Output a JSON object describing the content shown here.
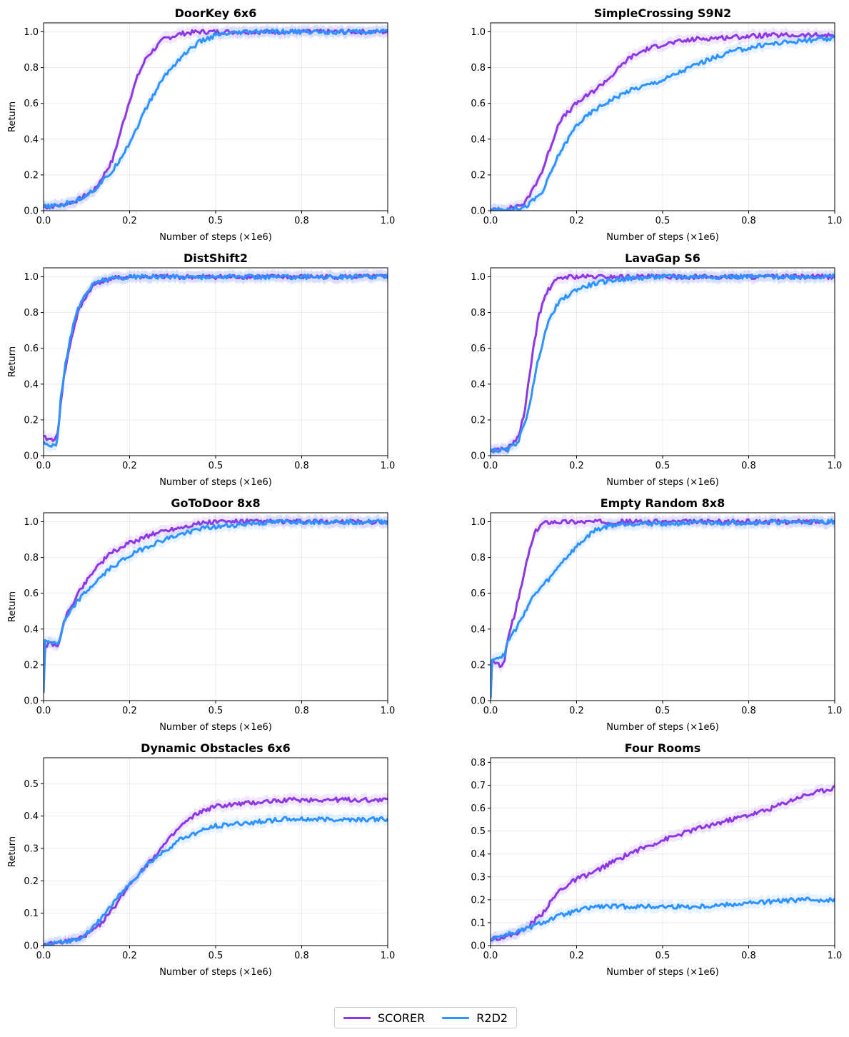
{
  "figure": {
    "legend": [
      {
        "name": "SCORER",
        "color": "#8e38e3"
      },
      {
        "name": "R2D2",
        "color": "#2e93ff"
      }
    ]
  },
  "chart_data": [
    {
      "type": "line",
      "title": "DoorKey 6x6",
      "xlabel": "Number of steps (×1e6)",
      "ylabel": "Return",
      "xlim": [
        0,
        1.0
      ],
      "ylim": [
        0,
        1.05
      ],
      "xticks": [
        0.0,
        0.25,
        0.5,
        0.75,
        1.0
      ],
      "xticklabels": [
        "0.0",
        "0.2",
        "0.5",
        "0.8",
        "1.0"
      ],
      "yticks": [
        0.0,
        0.2,
        0.4,
        0.6,
        0.8,
        1.0
      ],
      "yticklabels": [
        "0.0",
        "0.2",
        "0.4",
        "0.6",
        "0.8",
        "1.0"
      ],
      "grid": true,
      "series": [
        {
          "name": "SCORER",
          "color": "#8e38e3",
          "x": [
            0,
            0.05,
            0.1,
            0.15,
            0.2,
            0.225,
            0.25,
            0.275,
            0.3,
            0.35,
            0.4,
            0.45,
            0.5,
            0.6,
            0.8,
            1.0
          ],
          "y": [
            0.02,
            0.03,
            0.06,
            0.12,
            0.28,
            0.45,
            0.62,
            0.76,
            0.86,
            0.96,
            0.99,
            1.0,
            1.0,
            1.0,
            1.0,
            1.0
          ]
        },
        {
          "name": "R2D2",
          "color": "#2e93ff",
          "x": [
            0,
            0.05,
            0.1,
            0.15,
            0.2,
            0.25,
            0.3,
            0.35,
            0.4,
            0.45,
            0.5,
            0.55,
            0.6,
            0.8,
            1.0
          ],
          "y": [
            0.02,
            0.03,
            0.06,
            0.12,
            0.22,
            0.38,
            0.58,
            0.75,
            0.86,
            0.94,
            0.98,
            0.99,
            1.0,
            1.0,
            1.0
          ]
        }
      ]
    },
    {
      "type": "line",
      "title": "SimpleCrossing S9N2",
      "xlabel": "Number of steps (×1e6)",
      "ylabel": "",
      "xlim": [
        0,
        1.0
      ],
      "ylim": [
        0,
        1.05
      ],
      "xticks": [
        0.0,
        0.25,
        0.5,
        0.75,
        1.0
      ],
      "xticklabels": [
        "0.0",
        "0.2",
        "0.5",
        "0.8",
        "1.0"
      ],
      "yticks": [
        0.0,
        0.2,
        0.4,
        0.6,
        0.8,
        1.0
      ],
      "yticklabels": [
        "0.0",
        "0.2",
        "0.4",
        "0.6",
        "0.8",
        "1.0"
      ],
      "grid": true,
      "series": [
        {
          "name": "SCORER",
          "color": "#8e38e3",
          "x": [
            0,
            0.05,
            0.1,
            0.15,
            0.2,
            0.25,
            0.3,
            0.35,
            0.4,
            0.45,
            0.5,
            0.6,
            0.7,
            0.8,
            0.9,
            1.0
          ],
          "y": [
            0.0,
            0.01,
            0.04,
            0.22,
            0.5,
            0.6,
            0.67,
            0.75,
            0.85,
            0.9,
            0.93,
            0.96,
            0.97,
            0.98,
            0.98,
            0.98
          ]
        },
        {
          "name": "R2D2",
          "color": "#2e93ff",
          "x": [
            0,
            0.05,
            0.1,
            0.15,
            0.2,
            0.25,
            0.3,
            0.35,
            0.4,
            0.5,
            0.6,
            0.7,
            0.8,
            0.9,
            1.0
          ],
          "y": [
            0.0,
            0.01,
            0.02,
            0.1,
            0.32,
            0.48,
            0.56,
            0.62,
            0.67,
            0.73,
            0.82,
            0.89,
            0.93,
            0.95,
            0.96
          ]
        }
      ]
    },
    {
      "type": "line",
      "title": "DistShift2",
      "xlabel": "Number of steps (×1e6)",
      "ylabel": "Return",
      "xlim": [
        0,
        1.0
      ],
      "ylim": [
        0,
        1.05
      ],
      "xticks": [
        0.0,
        0.25,
        0.5,
        0.75,
        1.0
      ],
      "xticklabels": [
        "0.0",
        "0.2",
        "0.5",
        "0.8",
        "1.0"
      ],
      "yticks": [
        0.0,
        0.2,
        0.4,
        0.6,
        0.8,
        1.0
      ],
      "yticklabels": [
        "0.0",
        "0.2",
        "0.4",
        "0.6",
        "0.8",
        "1.0"
      ],
      "grid": true,
      "series": [
        {
          "name": "SCORER",
          "color": "#8e38e3",
          "x": [
            0,
            0.02,
            0.04,
            0.05,
            0.06,
            0.08,
            0.1,
            0.12,
            0.14,
            0.16,
            0.2,
            0.25,
            0.3,
            1.0
          ],
          "y": [
            0.1,
            0.09,
            0.1,
            0.3,
            0.45,
            0.65,
            0.8,
            0.88,
            0.94,
            0.97,
            0.99,
            1.0,
            1.0,
            1.0
          ]
        },
        {
          "name": "R2D2",
          "color": "#2e93ff",
          "x": [
            0,
            0.02,
            0.04,
            0.05,
            0.06,
            0.08,
            0.1,
            0.12,
            0.14,
            0.16,
            0.2,
            0.25,
            0.3,
            1.0
          ],
          "y": [
            0.07,
            0.06,
            0.07,
            0.32,
            0.47,
            0.68,
            0.82,
            0.9,
            0.95,
            0.98,
            0.99,
            1.0,
            1.0,
            1.0
          ]
        }
      ]
    },
    {
      "type": "line",
      "title": "LavaGap S6",
      "xlabel": "Number of steps (×1e6)",
      "ylabel": "",
      "xlim": [
        0,
        1.0
      ],
      "ylim": [
        0,
        1.05
      ],
      "xticks": [
        0.0,
        0.25,
        0.5,
        0.75,
        1.0
      ],
      "xticklabels": [
        "0.0",
        "0.2",
        "0.5",
        "0.8",
        "1.0"
      ],
      "yticks": [
        0.0,
        0.2,
        0.4,
        0.6,
        0.8,
        1.0
      ],
      "yticklabels": [
        "0.0",
        "0.2",
        "0.4",
        "0.6",
        "0.8",
        "1.0"
      ],
      "grid": true,
      "series": [
        {
          "name": "SCORER",
          "color": "#8e38e3",
          "x": [
            0,
            0.05,
            0.08,
            0.1,
            0.12,
            0.14,
            0.16,
            0.18,
            0.2,
            0.22,
            0.25,
            0.3,
            1.0
          ],
          "y": [
            0.03,
            0.04,
            0.1,
            0.25,
            0.55,
            0.78,
            0.9,
            0.96,
            0.99,
            1.0,
            1.0,
            1.0,
            1.0
          ]
        },
        {
          "name": "R2D2",
          "color": "#2e93ff",
          "x": [
            0,
            0.05,
            0.08,
            0.1,
            0.12,
            0.14,
            0.16,
            0.18,
            0.2,
            0.25,
            0.3,
            0.35,
            0.4,
            0.5,
            1.0
          ],
          "y": [
            0.03,
            0.03,
            0.08,
            0.18,
            0.35,
            0.55,
            0.7,
            0.8,
            0.86,
            0.93,
            0.96,
            0.98,
            0.99,
            1.0,
            1.0
          ]
        }
      ]
    },
    {
      "type": "line",
      "title": "GoToDoor 8x8",
      "xlabel": "Number of steps (×1e6)",
      "ylabel": "Return",
      "xlim": [
        0,
        1.0
      ],
      "ylim": [
        0,
        1.05
      ],
      "xticks": [
        0.0,
        0.25,
        0.5,
        0.75,
        1.0
      ],
      "xticklabels": [
        "0.0",
        "0.2",
        "0.5",
        "0.8",
        "1.0"
      ],
      "yticks": [
        0.0,
        0.2,
        0.4,
        0.6,
        0.8,
        1.0
      ],
      "yticklabels": [
        "0.0",
        "0.2",
        "0.4",
        "0.6",
        "0.8",
        "1.0"
      ],
      "grid": true,
      "series": [
        {
          "name": "SCORER",
          "color": "#8e38e3",
          "x": [
            0,
            0.003,
            0.02,
            0.045,
            0.06,
            0.1,
            0.15,
            0.2,
            0.25,
            0.3,
            0.35,
            0.4,
            0.45,
            0.5,
            0.6,
            0.8,
            1.0
          ],
          "y": [
            0.05,
            0.3,
            0.32,
            0.31,
            0.45,
            0.6,
            0.74,
            0.83,
            0.88,
            0.92,
            0.95,
            0.97,
            0.99,
            1.0,
            1.0,
            1.0,
            1.0
          ]
        },
        {
          "name": "R2D2",
          "color": "#2e93ff",
          "x": [
            0,
            0.003,
            0.02,
            0.045,
            0.06,
            0.1,
            0.15,
            0.2,
            0.25,
            0.3,
            0.35,
            0.4,
            0.45,
            0.5,
            0.6,
            0.7,
            0.8,
            1.0
          ],
          "y": [
            0.05,
            0.33,
            0.33,
            0.32,
            0.44,
            0.56,
            0.66,
            0.75,
            0.81,
            0.86,
            0.9,
            0.93,
            0.96,
            0.97,
            0.99,
            1.0,
            1.0,
            1.0
          ]
        }
      ]
    },
    {
      "type": "line",
      "title": "Empty Random 8x8",
      "xlabel": "Number of steps (×1e6)",
      "ylabel": "",
      "xlim": [
        0,
        1.0
      ],
      "ylim": [
        0,
        1.05
      ],
      "xticks": [
        0.0,
        0.25,
        0.5,
        0.75,
        1.0
      ],
      "xticklabels": [
        "0.0",
        "0.2",
        "0.5",
        "0.8",
        "1.0"
      ],
      "yticks": [
        0.0,
        0.2,
        0.4,
        0.6,
        0.8,
        1.0
      ],
      "yticklabels": [
        "0.0",
        "0.2",
        "0.4",
        "0.6",
        "0.8",
        "1.0"
      ],
      "grid": true,
      "series": [
        {
          "name": "SCORER",
          "color": "#8e38e3",
          "x": [
            0,
            0.003,
            0.02,
            0.04,
            0.05,
            0.07,
            0.09,
            0.11,
            0.13,
            0.15,
            0.17,
            0.2,
            1.0
          ],
          "y": [
            0.0,
            0.22,
            0.2,
            0.2,
            0.35,
            0.48,
            0.64,
            0.82,
            0.94,
            0.99,
            1.0,
            1.0,
            1.0
          ]
        },
        {
          "name": "R2D2",
          "color": "#2e93ff",
          "x": [
            0,
            0.003,
            0.02,
            0.04,
            0.05,
            0.08,
            0.1,
            0.12,
            0.15,
            0.18,
            0.2,
            0.25,
            0.3,
            0.35,
            0.4,
            0.5,
            1.0
          ],
          "y": [
            0.0,
            0.24,
            0.24,
            0.25,
            0.33,
            0.42,
            0.5,
            0.57,
            0.64,
            0.7,
            0.76,
            0.86,
            0.95,
            0.98,
            0.99,
            0.99,
            1.0
          ]
        }
      ]
    },
    {
      "type": "line",
      "title": "Dynamic Obstacles 6x6",
      "xlabel": "Number of steps (×1e6)",
      "ylabel": "Return",
      "xlim": [
        0,
        1.0
      ],
      "ylim": [
        0,
        0.58
      ],
      "xticks": [
        0.0,
        0.25,
        0.5,
        0.75,
        1.0
      ],
      "xticklabels": [
        "0.0",
        "0.2",
        "0.5",
        "0.8",
        "1.0"
      ],
      "yticks": [
        0.0,
        0.1,
        0.2,
        0.3,
        0.4,
        0.5
      ],
      "yticklabels": [
        "0.0",
        "0.1",
        "0.2",
        "0.3",
        "0.4",
        "0.5"
      ],
      "grid": true,
      "series": [
        {
          "name": "SCORER",
          "color": "#8e38e3",
          "x": [
            0,
            0.1,
            0.15,
            0.2,
            0.25,
            0.3,
            0.35,
            0.4,
            0.45,
            0.5,
            0.6,
            0.7,
            0.8,
            0.9,
            1.0
          ],
          "y": [
            0.0,
            0.02,
            0.05,
            0.11,
            0.19,
            0.25,
            0.31,
            0.37,
            0.41,
            0.43,
            0.44,
            0.45,
            0.45,
            0.45,
            0.45
          ]
        },
        {
          "name": "R2D2",
          "color": "#2e93ff",
          "x": [
            0,
            0.1,
            0.15,
            0.2,
            0.25,
            0.3,
            0.35,
            0.4,
            0.45,
            0.5,
            0.6,
            0.7,
            0.8,
            0.9,
            1.0
          ],
          "y": [
            0.0,
            0.02,
            0.06,
            0.13,
            0.19,
            0.25,
            0.29,
            0.33,
            0.35,
            0.37,
            0.38,
            0.39,
            0.39,
            0.39,
            0.39
          ]
        }
      ]
    },
    {
      "type": "line",
      "title": "Four Rooms",
      "xlabel": "Number of steps (×1e6)",
      "ylabel": "",
      "xlim": [
        0,
        1.0
      ],
      "ylim": [
        0,
        0.82
      ],
      "xticks": [
        0.0,
        0.25,
        0.5,
        0.75,
        1.0
      ],
      "xticklabels": [
        "0.0",
        "0.2",
        "0.5",
        "0.8",
        "1.0"
      ],
      "yticks": [
        0.0,
        0.1,
        0.2,
        0.3,
        0.4,
        0.5,
        0.6,
        0.7,
        0.8
      ],
      "yticklabels": [
        "0.0",
        "0.1",
        "0.2",
        "0.3",
        "0.4",
        "0.5",
        "0.6",
        "0.7",
        "0.8"
      ],
      "grid": true,
      "series": [
        {
          "name": "SCORER",
          "color": "#8e38e3",
          "x": [
            0,
            0.05,
            0.1,
            0.15,
            0.2,
            0.25,
            0.3,
            0.35,
            0.4,
            0.5,
            0.6,
            0.7,
            0.8,
            0.9,
            1.0
          ],
          "y": [
            0.03,
            0.04,
            0.07,
            0.14,
            0.24,
            0.29,
            0.32,
            0.36,
            0.4,
            0.46,
            0.51,
            0.55,
            0.59,
            0.65,
            0.69
          ]
        },
        {
          "name": "R2D2",
          "color": "#2e93ff",
          "x": [
            0,
            0.05,
            0.1,
            0.15,
            0.2,
            0.25,
            0.3,
            0.35,
            0.4,
            0.5,
            0.6,
            0.7,
            0.8,
            0.9,
            1.0
          ],
          "y": [
            0.03,
            0.05,
            0.07,
            0.1,
            0.13,
            0.15,
            0.17,
            0.17,
            0.17,
            0.17,
            0.17,
            0.18,
            0.19,
            0.2,
            0.2
          ]
        }
      ]
    }
  ]
}
